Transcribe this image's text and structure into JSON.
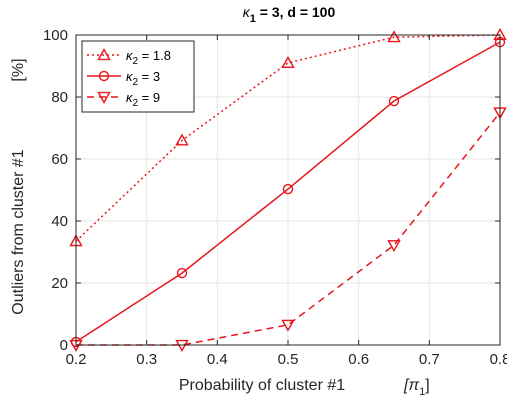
{
  "chart_data": {
    "type": "line",
    "title": {
      "pre": "κ",
      "sub": "1",
      "post": " = 3, d = 100"
    },
    "xlabel": {
      "text": "Probability of cluster #1",
      "sym": "[π",
      "sub": "1",
      "close": "]"
    },
    "ylabel": {
      "text": "Outliers from cluster #1",
      "unit": "[%]"
    },
    "xlim": [
      0.2,
      0.8
    ],
    "ylim": [
      0,
      100
    ],
    "xticks": [
      "0.2",
      "0.3",
      "0.4",
      "0.5",
      "0.6",
      "0.7",
      "0.8"
    ],
    "yticks": [
      "0",
      "20",
      "40",
      "60",
      "80",
      "100"
    ],
    "grid": true,
    "legend_position": "top-left",
    "color": "#e8141b",
    "x": [
      0.2,
      0.35,
      0.5,
      0.65,
      0.8
    ],
    "series": [
      {
        "label_pre": "κ",
        "label_sub": "2",
        "label_post": " = 1.8",
        "marker": "triangle-up",
        "line": "dotted",
        "values": [
          33.5,
          66,
          91,
          99.3,
          100
        ]
      },
      {
        "label_pre": "κ",
        "label_sub": "2",
        "label_post": " = 3",
        "marker": "circle",
        "line": "solid",
        "values": [
          1,
          23.2,
          50.3,
          78.7,
          97.7
        ]
      },
      {
        "label_pre": "κ",
        "label_sub": "2",
        "label_post": " = 9",
        "marker": "triangle-down",
        "line": "dashed",
        "values": [
          0,
          0,
          6.5,
          32.2,
          75
        ]
      }
    ]
  }
}
